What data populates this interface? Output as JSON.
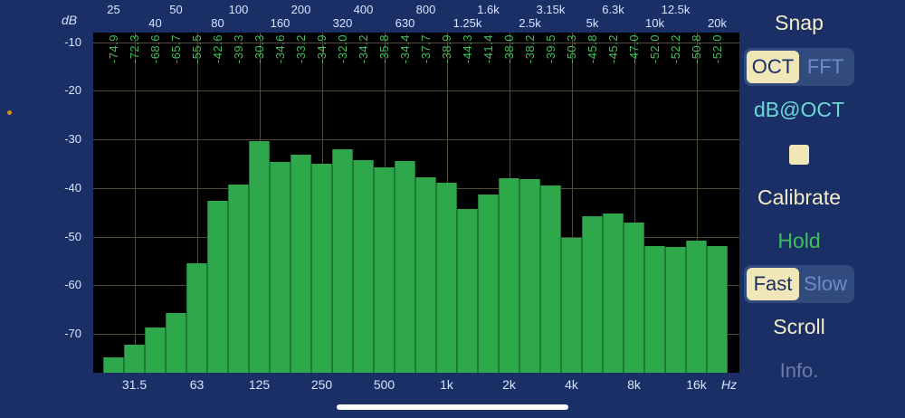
{
  "units": {
    "db": "dB",
    "hz": "Hz"
  },
  "top_ticks": [
    "25",
    "40",
    "50",
    "80",
    "100",
    "160",
    "200",
    "320",
    "400",
    "630",
    "800",
    "1.25k",
    "1.6k",
    "2.5k",
    "3.15k",
    "5k",
    "6.3k",
    "10k",
    "12.5k",
    "20k"
  ],
  "y_ticks": [
    "-10",
    "-20",
    "-30",
    "-40",
    "-50",
    "-60",
    "-70"
  ],
  "x_ticks": [
    "31.5",
    "63",
    "125",
    "250",
    "500",
    "1k",
    "2k",
    "4k",
    "8k",
    "16k"
  ],
  "bar_labels": [
    "-74.9",
    "-72.3",
    "-68.6",
    "-65.7",
    "-55.5",
    "-42.6",
    "-39.3",
    "-30.3",
    "-34.6",
    "-33.2",
    "-34.9",
    "-32.0",
    "-34.2",
    "-35.8",
    "-34.4",
    "-37.7",
    "-38.9",
    "-44.3",
    "-41.4",
    "-38.0",
    "-38.2",
    "-39.5",
    "-50.3",
    "-45.8",
    "-45.2",
    "-47.0",
    "-52.0",
    "-52.2",
    "-50.8",
    "-52.0"
  ],
  "chart_data": {
    "type": "bar",
    "ylabel": "dB",
    "xlabel": "Hz",
    "ylim": [
      -78,
      -8
    ],
    "grid": true,
    "categories": [
      "25",
      "31.5",
      "40",
      "50",
      "63",
      "80",
      "100",
      "125",
      "160",
      "200",
      "250",
      "320",
      "400",
      "500",
      "630",
      "800",
      "1k",
      "1.25k",
      "1.6k",
      "2k",
      "2.5k",
      "3.15k",
      "4k",
      "5k",
      "6.3k",
      "8k",
      "10k",
      "12.5k",
      "16k",
      "20k"
    ],
    "values": [
      -74.9,
      -72.3,
      -68.6,
      -65.7,
      -55.5,
      -42.6,
      -39.3,
      -30.3,
      -34.6,
      -33.2,
      -34.9,
      -32.0,
      -34.2,
      -35.8,
      -34.4,
      -37.7,
      -38.9,
      -44.3,
      -41.4,
      -38.0,
      -38.2,
      -39.5,
      -50.3,
      -45.8,
      -45.2,
      -47.0,
      -52.0,
      -52.2,
      -50.8,
      -52.0
    ],
    "color": "#2fa84c"
  },
  "side": {
    "snap": "Snap",
    "oct": "OCT",
    "fft": "FFT",
    "mode": "dB@OCT",
    "calibrate": "Calibrate",
    "hold": "Hold",
    "fast": "Fast",
    "slow": "Slow",
    "scroll": "Scroll",
    "info": "Info."
  },
  "colors": {
    "background": "#1a2f66",
    "bar": "#2fa84c",
    "label": "#3fbf5a",
    "accent": "#f0e6b8"
  }
}
